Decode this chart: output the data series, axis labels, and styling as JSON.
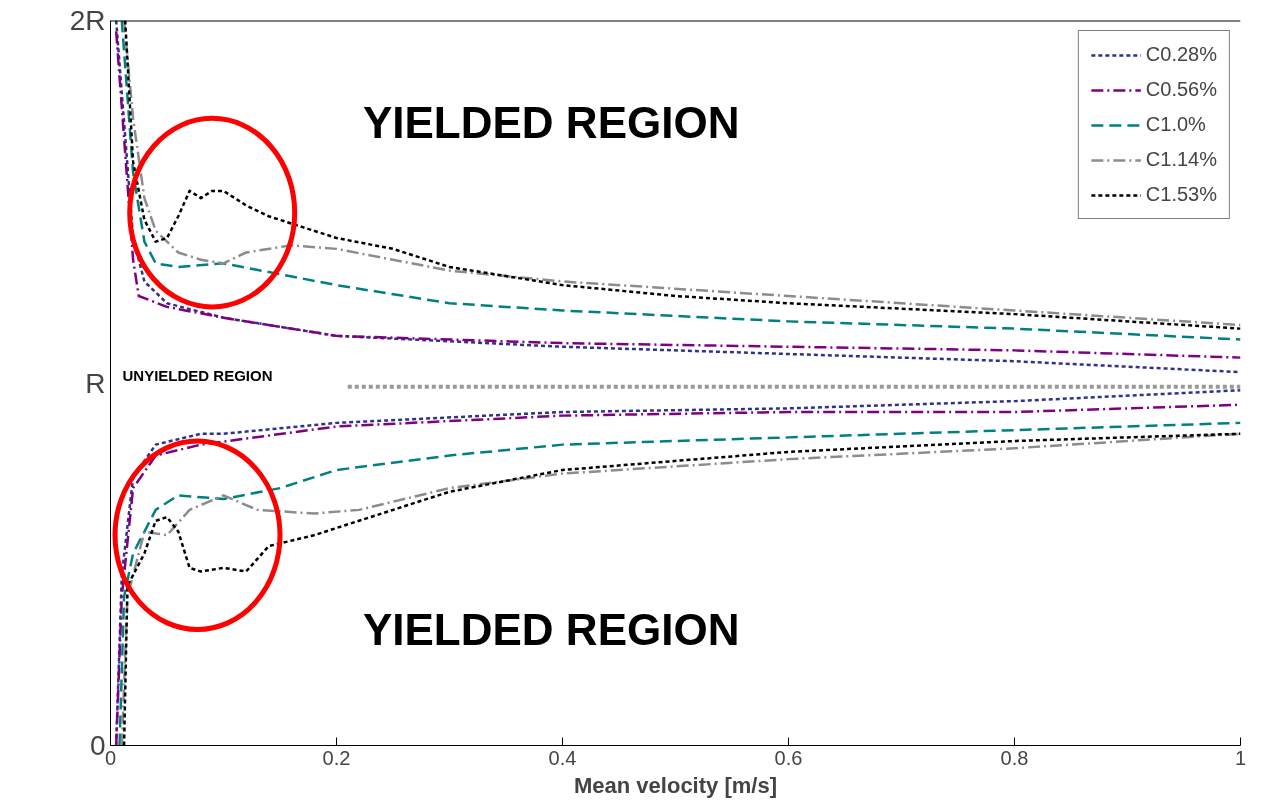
{
  "chart_data": {
    "type": "line",
    "xlabel": "Mean velocity [m/s]",
    "xlim": [
      0,
      1
    ],
    "xticks": [
      0,
      0.2,
      0.4,
      0.6,
      0.8,
      1
    ],
    "ylim": [
      0,
      2
    ],
    "yticks": [
      {
        "value": 0,
        "label": "0"
      },
      {
        "value": 1,
        "label": "R"
      },
      {
        "value": 2,
        "label": "2R"
      }
    ],
    "grid": false,
    "legend": "top right",
    "marker": "none",
    "ref_lines": [
      {
        "axis": "y",
        "value": 2,
        "label": null,
        "color": "#000000",
        "line_style": "solid"
      }
    ],
    "annotations": [
      "YIELDED REGION",
      "YIELDED REGION",
      "UNYIELDED REGION"
    ],
    "series": [
      {
        "name": "C0.28%",
        "color": "#2e3192",
        "line_style": "dotted",
        "x": [
          0.005,
          0.02,
          0.03,
          0.05,
          0.1,
          0.2,
          0.4,
          0.6,
          0.8,
          1
        ],
        "values": [
          2.0,
          1.4,
          1.28,
          1.22,
          1.18,
          1.13,
          1.1,
          1.08,
          1.06,
          1.03
        ]
      },
      {
        "color": "#2e3192",
        "line_style": "dotted",
        "x": [
          0.005,
          0.01,
          0.02,
          0.04,
          0.08,
          0.1,
          0.2,
          0.4,
          0.6,
          0.8,
          1
        ],
        "values": [
          0,
          0.47,
          0.74,
          0.83,
          0.86,
          0.86,
          0.89,
          0.92,
          0.93,
          0.95,
          0.98
        ]
      },
      {
        "name": "C0.56%",
        "color": "#800080",
        "line_style": "dashdot",
        "x": [
          0.005,
          0.02,
          0.025,
          0.05,
          0.1,
          0.2,
          0.4,
          0.6,
          0.8,
          1
        ],
        "values": [
          1.97,
          1.34,
          1.24,
          1.21,
          1.18,
          1.13,
          1.11,
          1.1,
          1.09,
          1.07
        ]
      },
      {
        "color": "#800080",
        "line_style": "dashdot",
        "x": [
          0.005,
          0.01,
          0.02,
          0.04,
          0.08,
          0.2,
          0.4,
          0.6,
          0.8,
          1
        ],
        "values": [
          0,
          0.41,
          0.71,
          0.8,
          0.83,
          0.88,
          0.91,
          0.92,
          0.92,
          0.94
        ]
      },
      {
        "name": "C1.0%",
        "color": "#008080",
        "line_style": "dashed",
        "x": [
          0.01,
          0.02,
          0.03,
          0.04,
          0.06,
          0.1,
          0.15,
          0.2,
          0.3,
          0.4,
          0.6,
          0.8,
          1
        ],
        "values": [
          2.0,
          1.58,
          1.39,
          1.33,
          1.32,
          1.33,
          1.3,
          1.27,
          1.22,
          1.2,
          1.17,
          1.15,
          1.12
        ]
      },
      {
        "color": "#008080",
        "line_style": "dashed",
        "x": [
          0.008,
          0.012,
          0.02,
          0.04,
          0.06,
          0.1,
          0.15,
          0.2,
          0.3,
          0.4,
          0.6,
          0.8,
          1
        ],
        "values": [
          0,
          0.41,
          0.53,
          0.65,
          0.69,
          0.68,
          0.71,
          0.76,
          0.8,
          0.83,
          0.85,
          0.87,
          0.89
        ]
      },
      {
        "name": "C1.14%",
        "color": "#8c8c8c",
        "line_style": "dashdot",
        "x": [
          0.012,
          0.02,
          0.03,
          0.04,
          0.06,
          0.08,
          0.1,
          0.12,
          0.16,
          0.2,
          0.25,
          0.3,
          0.4,
          0.6,
          0.8,
          1
        ],
        "values": [
          2.0,
          1.73,
          1.51,
          1.42,
          1.36,
          1.34,
          1.33,
          1.36,
          1.38,
          1.37,
          1.34,
          1.31,
          1.28,
          1.24,
          1.2,
          1.16
        ]
      },
      {
        "color": "#8c8c8c",
        "line_style": "dashdot",
        "x": [
          0.01,
          0.015,
          0.03,
          0.05,
          0.07,
          0.1,
          0.13,
          0.18,
          0.22,
          0.3,
          0.4,
          0.6,
          0.8,
          1
        ],
        "values": [
          0,
          0.41,
          0.59,
          0.58,
          0.65,
          0.69,
          0.65,
          0.64,
          0.65,
          0.71,
          0.75,
          0.79,
          0.82,
          0.86
        ]
      },
      {
        "name": "C1.53%",
        "color": "#000000",
        "line_style": "dotted",
        "x": [
          0.013,
          0.02,
          0.03,
          0.04,
          0.05,
          0.06,
          0.07,
          0.08,
          0.09,
          0.1,
          0.12,
          0.14,
          0.17,
          0.2,
          0.25,
          0.3,
          0.4,
          0.5,
          0.6,
          0.8,
          1
        ],
        "values": [
          2.0,
          1.61,
          1.45,
          1.39,
          1.4,
          1.46,
          1.53,
          1.51,
          1.53,
          1.53,
          1.49,
          1.46,
          1.43,
          1.4,
          1.37,
          1.32,
          1.27,
          1.24,
          1.22,
          1.19,
          1.15
        ]
      },
      {
        "color": "#000000",
        "line_style": "dotted",
        "x": [
          0.012,
          0.015,
          0.03,
          0.04,
          0.05,
          0.06,
          0.07,
          0.08,
          0.1,
          0.12,
          0.14,
          0.18,
          0.22,
          0.3,
          0.4,
          0.6,
          0.8,
          1
        ],
        "values": [
          0,
          0.44,
          0.53,
          0.62,
          0.63,
          0.59,
          0.49,
          0.48,
          0.49,
          0.48,
          0.55,
          0.58,
          0.62,
          0.7,
          0.76,
          0.81,
          0.84,
          0.86
        ]
      },
      {
        "color": "#999999",
        "line_style": "dotted",
        "x": [
          0.21,
          1
        ],
        "values": [
          0.99,
          0.99
        ]
      }
    ]
  }
}
